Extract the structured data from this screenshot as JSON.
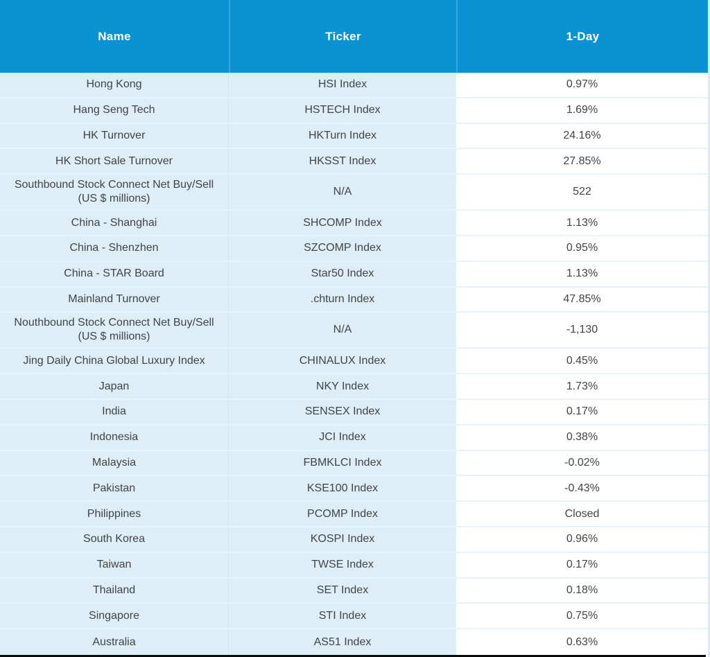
{
  "table": {
    "columns": [
      {
        "label": "Name"
      },
      {
        "label": "Ticker"
      },
      {
        "label": "1-Day"
      }
    ],
    "rows": [
      {
        "name": "Hong Kong",
        "ticker": "HSI Index",
        "one_day": "0.97%"
      },
      {
        "name": "Hang Seng Tech",
        "ticker": "HSTECH Index",
        "one_day": "1.69%"
      },
      {
        "name": "HK Turnover",
        "ticker": "HKTurn Index",
        "one_day": "24.16%"
      },
      {
        "name": "HK Short Sale Turnover",
        "ticker": "HKSST Index",
        "one_day": "27.85%"
      },
      {
        "name": "Southbound Stock Connect Net Buy/Sell (US $ millions)",
        "ticker": "N/A",
        "one_day": "522"
      },
      {
        "name": "China - Shanghai",
        "ticker": "SHCOMP Index",
        "one_day": "1.13%"
      },
      {
        "name": "China - Shenzhen",
        "ticker": "SZCOMP Index",
        "one_day": "0.95%"
      },
      {
        "name": "China - STAR Board",
        "ticker": "Star50 Index",
        "one_day": "1.13%"
      },
      {
        "name": "Mainland Turnover",
        "ticker": ".chturn Index",
        "one_day": "47.85%"
      },
      {
        "name": "Nouthbound Stock Connect Net Buy/Sell (US $ millions)",
        "ticker": "N/A",
        "one_day": "-1,130"
      },
      {
        "name": "Jing Daily China Global Luxury Index",
        "ticker": "CHINALUX Index",
        "one_day": "0.45%"
      },
      {
        "name": "Japan",
        "ticker": "NKY Index",
        "one_day": "1.73%"
      },
      {
        "name": "India",
        "ticker": "SENSEX Index",
        "one_day": "0.17%"
      },
      {
        "name": "Indonesia",
        "ticker": "JCI Index",
        "one_day": "0.38%"
      },
      {
        "name": "Malaysia",
        "ticker": "FBMKLCI Index",
        "one_day": "-0.02%"
      },
      {
        "name": "Pakistan",
        "ticker": "KSE100 Index",
        "one_day": "-0.43%"
      },
      {
        "name": "Philippines",
        "ticker": "PCOMP Index",
        "one_day": "Closed"
      },
      {
        "name": "South Korea",
        "ticker": "KOSPI Index",
        "one_day": "0.96%"
      },
      {
        "name": "Taiwan",
        "ticker": "TWSE Index",
        "one_day": "0.17%"
      },
      {
        "name": "Thailand",
        "ticker": "SET Index",
        "one_day": "0.18%"
      },
      {
        "name": "Singapore",
        "ticker": "STI Index",
        "one_day": "0.75%"
      },
      {
        "name": "Australia",
        "ticker": "AS51 Index",
        "one_day": "0.63%"
      }
    ]
  },
  "colors": {
    "header_bg": "#0a93d3",
    "header_divider": "#3aa7db",
    "row_bg_light_blue": "#ddeef6",
    "value_bg": "#ffffff",
    "row_separator": "#e7f3fa",
    "text": "#414345",
    "header_text": "#ffffff",
    "bottom_bar": "#0b0b0b"
  }
}
